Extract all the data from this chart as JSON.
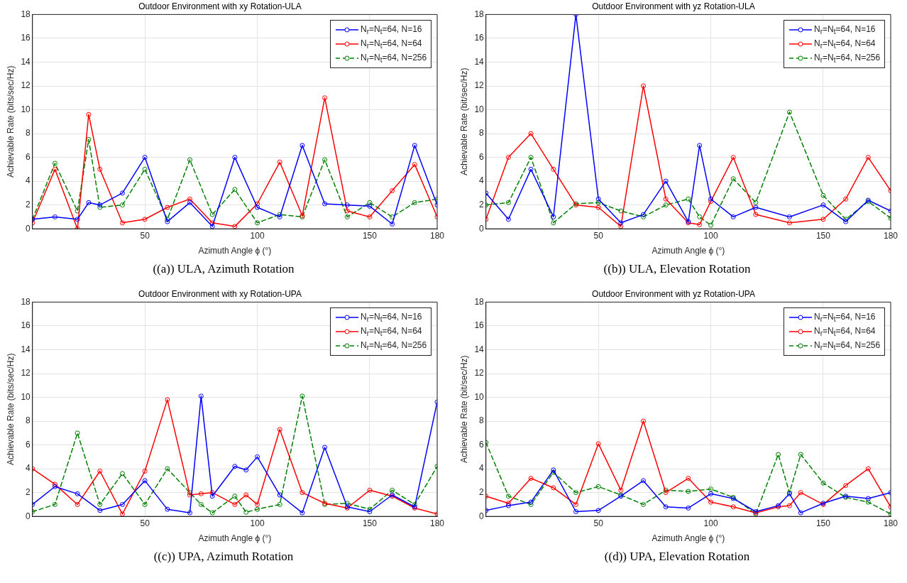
{
  "chart_data": [
    {
      "type": "line",
      "title": "Outdoor Environment with xy Rotation-ULA",
      "xlabel": "Azimuth Angle ϕ (°)",
      "ylabel": "Achievable Rate (bits/sec/Hz)",
      "x": [
        0,
        10,
        20,
        25,
        30,
        40,
        50,
        60,
        70,
        80,
        90,
        100,
        110,
        120,
        130,
        140,
        150,
        160,
        170,
        180
      ],
      "xlim": [
        0,
        180
      ],
      "xticks": [
        50,
        100,
        150,
        180
      ],
      "ylim": [
        0,
        18
      ],
      "yticks": [
        0,
        2,
        4,
        6,
        8,
        10,
        12,
        14,
        16,
        18
      ],
      "grid": true,
      "legend": "top right",
      "marker": "circle",
      "annotations": [
        "((a)) ULA, Azimuth Rotation"
      ],
      "series": [
        {
          "name": "N$_{r}$=N$_{t}$=64, N=16",
          "color": "#0000ff",
          "line_style": "solid",
          "values": [
            0.8,
            1.0,
            0.8,
            2.2,
            2.0,
            3.0,
            6.0,
            0.6,
            2.2,
            0.2,
            6.0,
            1.8,
            1.0,
            7.0,
            2.1,
            2.0,
            1.9,
            0.4,
            7.0,
            2.0
          ]
        },
        {
          "name": "N$_{r}$=N$_{t}$=64, N=64",
          "color": "#ff0000",
          "line_style": "solid",
          "values": [
            0.5,
            5.0,
            0.0,
            9.6,
            5.0,
            0.5,
            0.8,
            1.8,
            2.5,
            0.5,
            0.2,
            2.1,
            5.6,
            1.1,
            11.0,
            1.5,
            1.0,
            3.2,
            5.4,
            1.0
          ]
        },
        {
          "name": "N$_{r}$=N$_{t}$=64, N=256",
          "color": "#008000",
          "line_style": "dashed",
          "values": [
            0.8,
            5.5,
            1.5,
            7.5,
            1.8,
            2.0,
            5.0,
            0.8,
            5.8,
            1.2,
            3.3,
            0.5,
            1.2,
            1.0,
            5.8,
            1.0,
            2.2,
            1.0,
            2.2,
            2.5
          ]
        }
      ]
    },
    {
      "type": "line",
      "title": "Outdoor Environment with yz Rotation-ULA",
      "xlabel": "Azimuth Angle ϕ (°)",
      "ylabel": "Achievable Rate (bit/sec/Hz)",
      "x": [
        0,
        10,
        20,
        30,
        40,
        50,
        60,
        70,
        80,
        90,
        95,
        100,
        110,
        120,
        135,
        150,
        160,
        170,
        180
      ],
      "xlim": [
        0,
        180
      ],
      "xticks": [
        50,
        100,
        150,
        180
      ],
      "ylim": [
        0,
        18
      ],
      "yticks": [
        0,
        2,
        4,
        6,
        8,
        10,
        12,
        14,
        16,
        18
      ],
      "grid": true,
      "legend": "top right",
      "marker": "circle",
      "annotations": [
        "((b)) ULA, Elevation Rotation"
      ],
      "series": [
        {
          "name": "N$_{r}$=N$_{t}$=64, N=16",
          "color": "#0000ff",
          "line_style": "solid",
          "values": [
            3,
            0.8,
            5,
            1,
            18,
            2.5,
            0.5,
            1.2,
            4,
            0.6,
            7,
            2.5,
            1,
            1.8,
            1,
            2,
            0.6,
            2.4,
            1.5
          ]
        },
        {
          "name": "N$_{r}$=N$_{t}$=64, N=64",
          "color": "#ff0000",
          "line_style": "solid",
          "values": [
            0.8,
            6,
            8,
            5,
            2,
            1.8,
            0.2,
            12,
            2.5,
            0.5,
            0.35,
            2.3,
            6,
            1.2,
            0.5,
            0.8,
            2.5,
            6,
            3.2
          ]
        },
        {
          "name": "N$_{r}$=N$_{t}$=64, N=256",
          "color": "#008000",
          "line_style": "dashed",
          "values": [
            2,
            2.2,
            6,
            0.5,
            2.1,
            2.2,
            1.5,
            1,
            2,
            2.5,
            1,
            0.3,
            4.2,
            2.2,
            9.8,
            2.8,
            0.8,
            2.3,
            0.9
          ]
        }
      ]
    },
    {
      "type": "line",
      "title": "Outdoor Environment with xy Rotation-UPA",
      "xlabel": "Azimuth Angle ϕ (°)",
      "ylabel": "Achievable Rate (bits/sec/Hz)",
      "x": [
        0,
        10,
        20,
        30,
        40,
        50,
        60,
        70,
        75,
        80,
        90,
        95,
        100,
        110,
        120,
        130,
        140,
        150,
        160,
        170,
        180
      ],
      "xlim": [
        0,
        180
      ],
      "xticks": [
        50,
        100,
        150,
        180
      ],
      "ylim": [
        0,
        18
      ],
      "yticks": [
        0,
        2,
        4,
        6,
        8,
        10,
        12,
        14,
        16,
        18
      ],
      "grid": true,
      "legend": "top right",
      "marker": "circle",
      "annotations": [
        "((c)) UPA, Azimuth Rotation"
      ],
      "series": [
        {
          "name": "N$_{r}$=N$_{t}$=64, N=16",
          "color": "#0000ff",
          "line_style": "solid",
          "values": [
            1,
            2.5,
            1.9,
            0.5,
            1,
            3,
            0.6,
            0.3,
            10.1,
            1.7,
            4.2,
            3.9,
            5,
            1.8,
            0.3,
            5.8,
            0.8,
            0.4,
            1.8,
            0.8,
            9.6
          ]
        },
        {
          "name": "N$_{r}$=N$_{t}$=64, N=64",
          "color": "#ff0000",
          "line_style": "solid",
          "values": [
            4,
            2.7,
            1,
            3.8,
            0.2,
            3.8,
            9.8,
            1.8,
            1.9,
            2,
            1,
            1.8,
            1,
            7.3,
            2,
            1.1,
            0.7,
            2.2,
            1.7,
            0.7,
            0.2
          ]
        },
        {
          "name": "N$_{r}$=N$_{t}$=64, N=256",
          "color": "#008000",
          "line_style": "dashed",
          "values": [
            0.4,
            1,
            7,
            1,
            3.6,
            1,
            4,
            2,
            1,
            0.3,
            1.7,
            0.35,
            0.6,
            1,
            10.1,
            1,
            1.1,
            0.6,
            2.2,
            1,
            4.2
          ]
        }
      ]
    },
    {
      "type": "line",
      "title": "Outdoor Environment with yz Rotation-UPA",
      "xlabel": "Azimuth Angle ϕ (°)",
      "ylabel": "Achievable Rate (bit/sec/Hz)",
      "x": [
        0,
        10,
        20,
        30,
        40,
        50,
        60,
        70,
        80,
        90,
        100,
        110,
        120,
        130,
        135,
        140,
        150,
        160,
        170,
        180
      ],
      "xlim": [
        0,
        180
      ],
      "xticks": [
        50,
        100,
        150,
        180
      ],
      "ylim": [
        0,
        18
      ],
      "yticks": [
        0,
        2,
        4,
        6,
        8,
        10,
        12,
        14,
        16,
        18
      ],
      "grid": true,
      "legend": "top right",
      "marker": "circle",
      "annotations": [
        "((d)) UPA, Elevation Rotation"
      ],
      "series": [
        {
          "name": "N$_{r}$=N$_{t}$=64, N=16",
          "color": "#0000ff",
          "line_style": "solid",
          "values": [
            0.5,
            0.9,
            1.2,
            3.9,
            0.4,
            0.5,
            1.7,
            3,
            0.8,
            0.7,
            1.9,
            1.5,
            0.4,
            0.9,
            1.9,
            0.3,
            1.1,
            1.7,
            1.5,
            2
          ]
        },
        {
          "name": "N$_{r}$=N$_{t}$=64, N=64",
          "color": "#ff0000",
          "line_style": "solid",
          "values": [
            1.7,
            1.1,
            3.2,
            2.4,
            1,
            6.1,
            2.2,
            8,
            2,
            3.2,
            1.2,
            0.8,
            0.3,
            0.8,
            0.9,
            2,
            1,
            2.6,
            4,
            0.8
          ]
        },
        {
          "name": "N$_{r}$=N$_{t}$=64, N=256",
          "color": "#008000",
          "line_style": "dashed",
          "values": [
            6.2,
            1.7,
            1,
            3.7,
            2,
            2.5,
            1.8,
            1,
            2.2,
            2.1,
            2.3,
            1.6,
            0.2,
            5.2,
            2,
            5.2,
            2.8,
            1.6,
            1.2,
            0.2
          ]
        }
      ]
    }
  ]
}
